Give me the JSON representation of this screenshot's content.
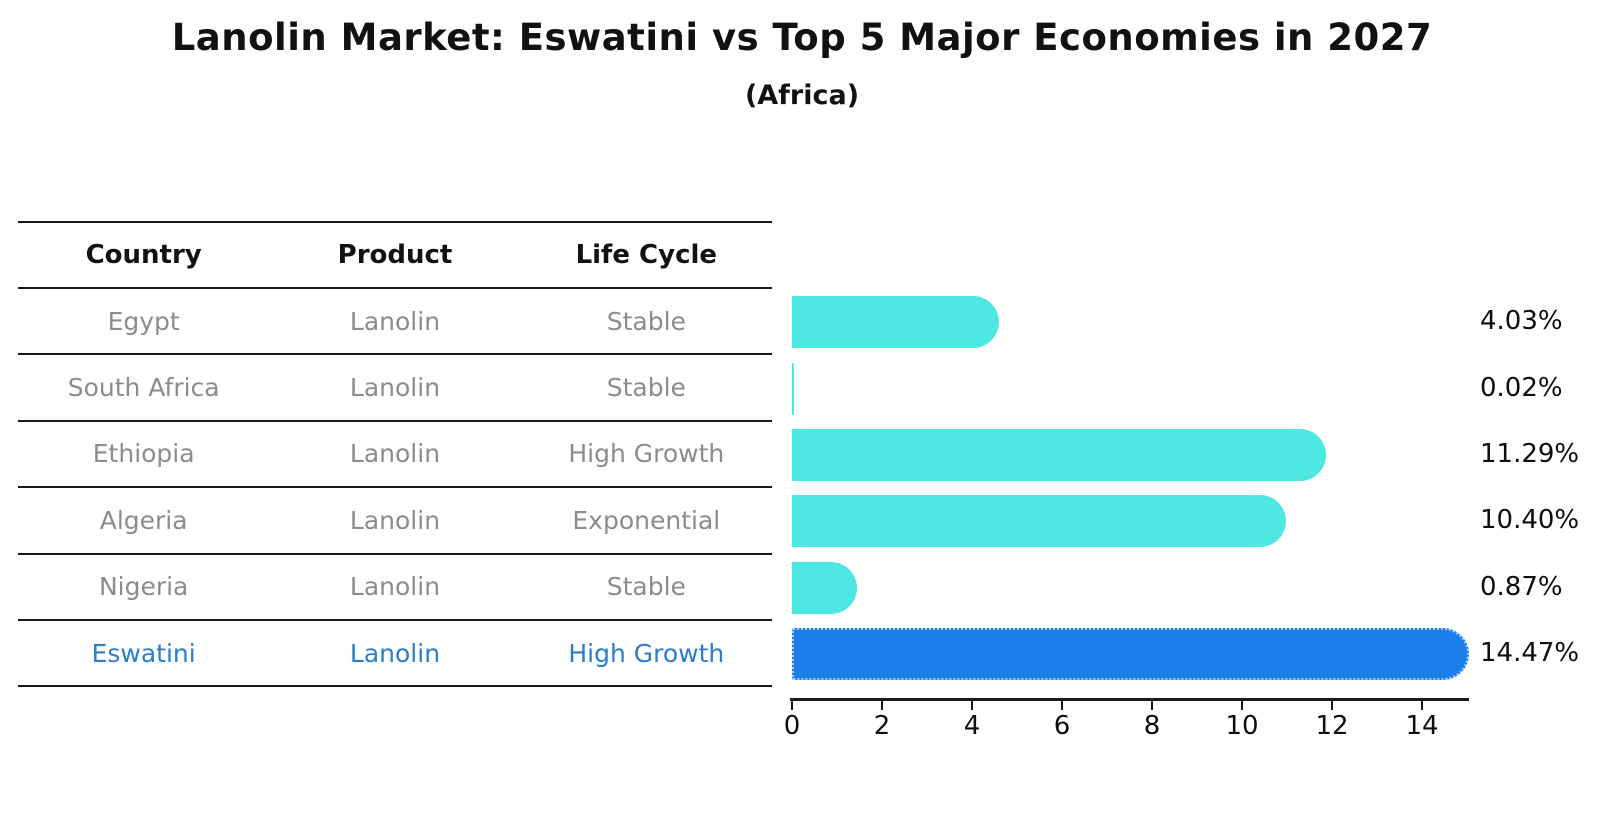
{
  "title": "Lanolin Market: Eswatini vs Top 5 Major Economies in 2027",
  "subtitle": "(Africa)",
  "table": {
    "headers": [
      "Country",
      "Product",
      "Life Cycle"
    ],
    "rows": [
      {
        "country": "Egypt",
        "product": "Lanolin",
        "life_cycle": "Stable",
        "highlight": false
      },
      {
        "country": "South Africa",
        "product": "Lanolin",
        "life_cycle": "Stable",
        "highlight": false
      },
      {
        "country": "Ethiopia",
        "product": "Lanolin",
        "life_cycle": "High Growth",
        "highlight": false
      },
      {
        "country": "Algeria",
        "product": "Lanolin",
        "life_cycle": "Exponential",
        "highlight": false
      },
      {
        "country": "Nigeria",
        "product": "Lanolin",
        "life_cycle": "Stable",
        "highlight": false
      },
      {
        "country": "Eswatini",
        "product": "Lanolin",
        "life_cycle": "High Growth",
        "highlight": true
      }
    ]
  },
  "chart_data": {
    "type": "bar",
    "orientation": "horizontal",
    "title": "Lanolin Market: Eswatini vs Top 5 Major Economies in 2027",
    "subtitle": "(Africa)",
    "categories": [
      "Egypt",
      "South Africa",
      "Ethiopia",
      "Algeria",
      "Nigeria",
      "Eswatini"
    ],
    "values": [
      4.03,
      0.02,
      11.29,
      10.4,
      0.87,
      14.47
    ],
    "value_labels": [
      "4.03%",
      "0.02%",
      "11.29%",
      "10.40%",
      "0.87%",
      "14.47%"
    ],
    "highlight_index": 5,
    "xlim": [
      0,
      15
    ],
    "xticks": [
      0,
      2,
      4,
      6,
      8,
      10,
      12,
      14
    ],
    "grid": false,
    "legend": false,
    "bar_color": "#4de8e1",
    "highlight_bar_color": "#1c7ee8",
    "highlight_text_color": "#2b7ec9"
  },
  "colors": {
    "bar_cyan": "#4de8e1",
    "bar_blue": "#1c7ee8",
    "highlight_text": "#2b7ec9",
    "table_text": "#8c8c8c",
    "heading_text": "#111111",
    "line": "#1a1a1a"
  }
}
